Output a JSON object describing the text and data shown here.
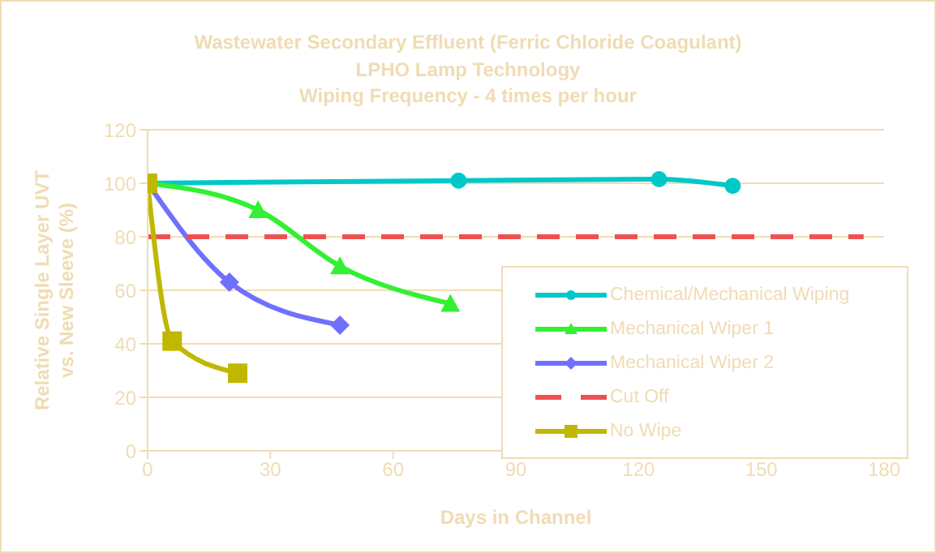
{
  "chart_data": {
    "type": "line",
    "title": "Wastewater Secondary Effluent (Ferric Chloride Coagulant)\nLPHO Lamp Technology\nWiping Frequency - 4 times per hour",
    "xlabel": "Days in Channel",
    "ylabel": "Relative Single Layer UVT\nvs. New Sleeve (%)",
    "xlim": [
      0,
      180
    ],
    "xticks": [
      0,
      30,
      60,
      90,
      120,
      150,
      180
    ],
    "ylim": [
      0,
      120
    ],
    "yticks": [
      0,
      20,
      40,
      60,
      80,
      100,
      120
    ],
    "grid": "y",
    "legend": "right",
    "series": [
      {
        "name": "Chemical/Mechanical Wiping",
        "color": "#00c8c8",
        "marker": "circle",
        "x": [
          0,
          76,
          125,
          143
        ],
        "values": [
          100,
          101,
          101.5,
          99
        ]
      },
      {
        "name": "Mechanical Wiper 1",
        "color": "#33f033",
        "marker": "triangle",
        "x": [
          0,
          27,
          47,
          74
        ],
        "values": [
          100,
          90,
          69,
          55
        ]
      },
      {
        "name": "Mechanical Wiper 2",
        "color": "#7070ff",
        "marker": "diamond",
        "x": [
          0,
          20,
          47
        ],
        "values": [
          100,
          63,
          47
        ]
      },
      {
        "name": "Cut Off",
        "color": "#f05050",
        "marker": "none",
        "line_style": "dashed",
        "x": [
          0,
          175
        ],
        "values": [
          80,
          80
        ]
      },
      {
        "name": "No Wipe",
        "color": "#c0b800",
        "marker": "square",
        "x": [
          0,
          6,
          22
        ],
        "values": [
          100,
          41,
          29
        ]
      }
    ]
  }
}
